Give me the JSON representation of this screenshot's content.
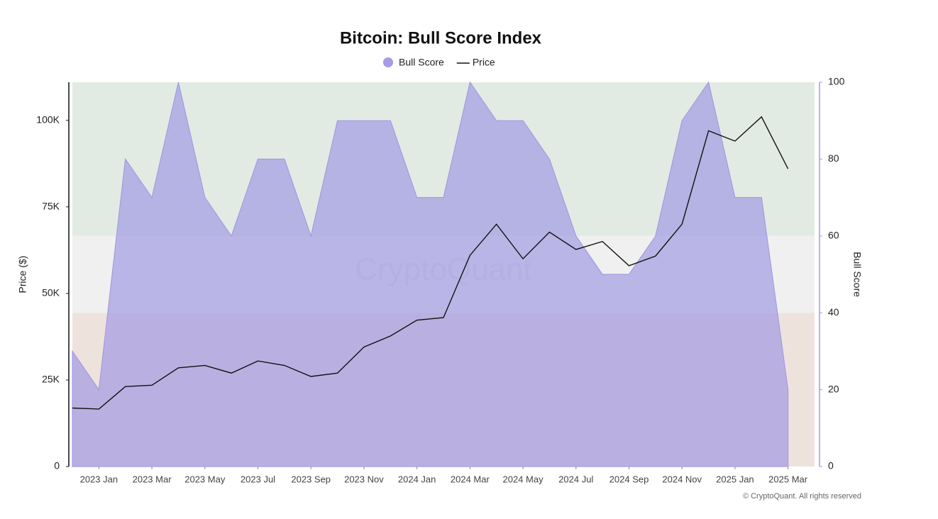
{
  "chart_data": {
    "type": "area-line",
    "title": "Bitcoin: Bull Score Index",
    "ylabel": "Price ($)",
    "y2label": "Bull Score",
    "watermark": "CryptoQuant",
    "footer": "© CryptoQuant. All rights reserved",
    "legend": "top",
    "x": [
      "2022-12",
      "2023-01",
      "2023-02",
      "2023-03",
      "2023-04",
      "2023-05",
      "2023-06",
      "2023-07",
      "2023-08",
      "2023-09",
      "2023-10",
      "2023-11",
      "2023-12",
      "2024-01",
      "2024-02",
      "2024-03",
      "2024-04",
      "2024-05",
      "2024-06",
      "2024-07",
      "2024-08",
      "2024-09",
      "2024-10",
      "2024-11",
      "2024-12",
      "2025-01",
      "2025-02",
      "2025-03"
    ],
    "xlim": [
      "2022-12",
      "2025-04"
    ],
    "xticks": [
      {
        "value": "2023-01",
        "label": "2023 Jan"
      },
      {
        "value": "2023-03",
        "label": "2023 Mar"
      },
      {
        "value": "2023-05",
        "label": "2023 May"
      },
      {
        "value": "2023-07",
        "label": "2023 Jul"
      },
      {
        "value": "2023-09",
        "label": "2023 Sep"
      },
      {
        "value": "2023-11",
        "label": "2023 Nov"
      },
      {
        "value": "2024-01",
        "label": "2024 Jan"
      },
      {
        "value": "2024-03",
        "label": "2024 Mar"
      },
      {
        "value": "2024-05",
        "label": "2024 May"
      },
      {
        "value": "2024-07",
        "label": "2024 Jul"
      },
      {
        "value": "2024-09",
        "label": "2024 Sep"
      },
      {
        "value": "2024-11",
        "label": "2024 Nov"
      },
      {
        "value": "2025-01",
        "label": "2025 Jan"
      },
      {
        "value": "2025-03",
        "label": "2025 Mar"
      }
    ],
    "ylim": [
      0,
      111000
    ],
    "yticks": [
      0,
      {
        "value": 25000,
        "label": "25K"
      },
      {
        "value": 50000,
        "label": "50K"
      },
      {
        "value": 75000,
        "label": "75K"
      },
      {
        "value": 100000,
        "label": "100K"
      }
    ],
    "y2lim": [
      0,
      100
    ],
    "y2ticks": [
      0,
      20,
      40,
      60,
      80,
      100
    ],
    "bands": [
      {
        "from": 0,
        "to": 40,
        "color": "#eee2dd"
      },
      {
        "from": 40,
        "to": 60,
        "color": "#f0f0f0"
      },
      {
        "from": 60,
        "to": 100,
        "color": "#e2ebe3"
      }
    ],
    "series": [
      {
        "name": "Bull Score",
        "color": "#a39be3",
        "axis": "y2",
        "values": [
          30,
          20,
          80,
          70,
          100,
          70,
          60,
          80,
          80,
          60,
          90,
          90,
          90,
          70,
          70,
          100,
          90,
          90,
          80,
          60,
          50,
          50,
          60,
          90,
          100,
          70,
          70,
          20
        ]
      },
      {
        "name": "Price",
        "color": "#111111",
        "values": [
          16900,
          16600,
          23100,
          23500,
          28500,
          29200,
          27000,
          30500,
          29200,
          26000,
          27000,
          34500,
          37700,
          42300,
          43000,
          61000,
          70000,
          60000,
          67700,
          62700,
          65000,
          58000,
          60800,
          70000,
          97000,
          94000,
          101000,
          86000
        ]
      }
    ]
  }
}
